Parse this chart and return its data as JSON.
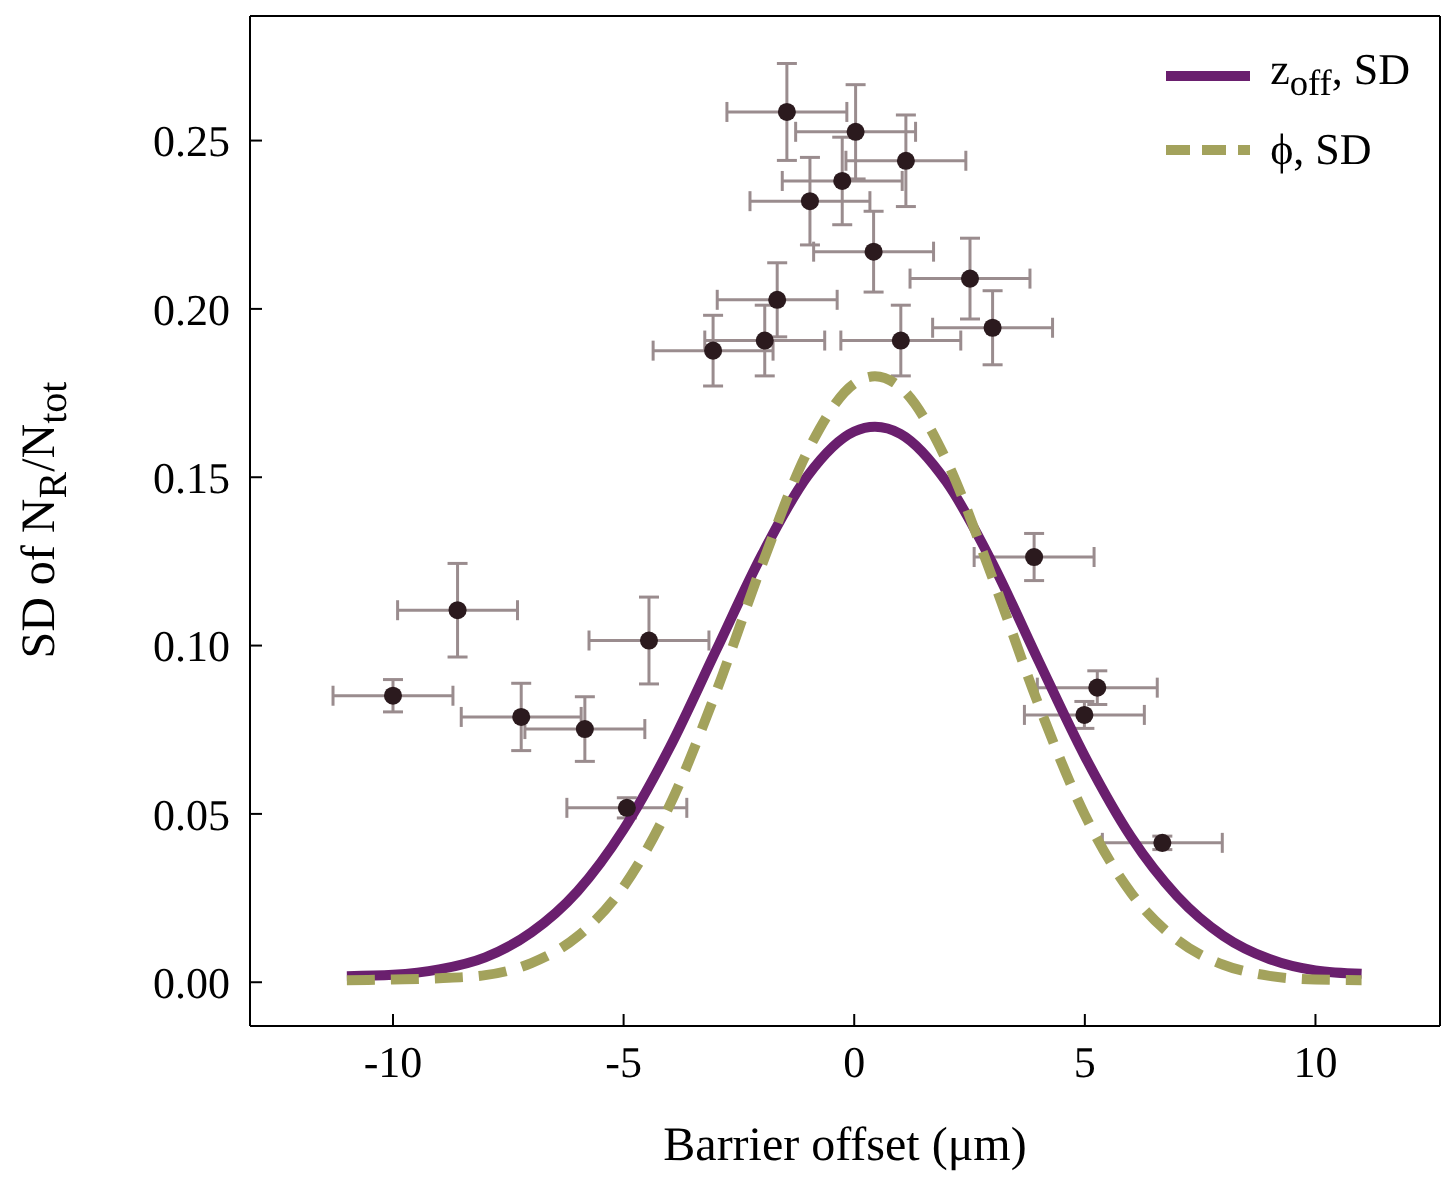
{
  "chart_data": {
    "type": "scatter",
    "xlabel": "Barrier offset (μm)",
    "ylabel": "SD of N$_{R}$/N$_{tot}$",
    "xlim": [
      -13.1,
      12.7
    ],
    "ylim": [
      -0.013,
      0.287
    ],
    "xticks": [
      -10,
      -5,
      0,
      5,
      10
    ],
    "yticks": [
      {
        "value": 0,
        "label": "0.00"
      },
      {
        "value": 0.05,
        "label": "0.05"
      },
      {
        "value": 0.1,
        "label": "0.10"
      },
      {
        "value": 0.15,
        "label": "0.15"
      },
      {
        "value": 0.2,
        "label": "0.20"
      },
      {
        "value": 0.25,
        "label": "0.25"
      }
    ],
    "legend": "top right",
    "series": [
      {
        "color": "#2b1a1e",
        "marker": "circle",
        "x": [
          -1.46,
          0.03,
          1.12,
          -0.26,
          -0.96,
          0.42,
          2.51,
          -1.67,
          -1.94,
          -3.06,
          1.01,
          3.0,
          3.9,
          -8.6,
          -4.45,
          -10.0,
          -7.22,
          -5.84,
          -4.93,
          5.27,
          4.99,
          6.68
        ],
        "values": [
          0.2585,
          0.2526,
          0.244,
          0.238,
          0.232,
          0.217,
          0.209,
          0.2027,
          0.1906,
          0.1876,
          0.1906,
          0.1944,
          0.1263,
          0.1105,
          0.1015,
          0.0851,
          0.0788,
          0.0752,
          0.0518,
          0.0875,
          0.0794,
          0.0414
        ],
        "errors": [
          0.0144,
          0.014,
          0.0136,
          0.013,
          0.013,
          0.012,
          0.012,
          0.011,
          0.0105,
          0.0105,
          0.0105,
          0.011,
          0.007,
          0.0139,
          0.0129,
          0.0048,
          0.01,
          0.0096,
          0.003,
          0.005,
          0.004,
          0.002
        ],
        "xerrors": [
          1.3,
          1.3,
          1.3,
          1.3,
          1.3,
          1.3,
          1.3,
          1.3,
          1.3,
          1.3,
          1.3,
          1.3,
          1.3,
          1.3,
          1.3,
          1.3,
          1.3,
          1.3,
          1.3,
          1.3,
          1.3,
          1.3
        ]
      },
      {
        "type": "line",
        "name": "z$_{off}$, SD",
        "color": "#6a1f6e",
        "line_style": "solid",
        "marker": "none",
        "x": [
          -11,
          -10,
          -9,
          -8,
          -7,
          -6,
          -5,
          -4,
          -3,
          -2,
          -1,
          0,
          0.45,
          1,
          2,
          3,
          4,
          5,
          6,
          7,
          8,
          9,
          10,
          11
        ],
        "values": [
          0.0018,
          0.0022,
          0.0038,
          0.0074,
          0.0148,
          0.027,
          0.0454,
          0.0697,
          0.0984,
          0.127,
          0.1506,
          0.1636,
          0.165,
          0.1629,
          0.1486,
          0.1244,
          0.0954,
          0.0671,
          0.0432,
          0.0256,
          0.0138,
          0.0069,
          0.0035,
          0.0025
        ]
      },
      {
        "type": "line",
        "name": "ϕ, SD",
        "color": "#a3a25c",
        "line_style": "dashed",
        "marker": "none",
        "x": [
          -11,
          -10,
          -9,
          -8,
          -7,
          -6,
          -5,
          -4,
          -3,
          -2,
          -1,
          0,
          0.45,
          1,
          2,
          3,
          4,
          5,
          6,
          7,
          8,
          9,
          10,
          11
        ],
        "values": [
          0.0006,
          0.0008,
          0.0012,
          0.0021,
          0.0057,
          0.0136,
          0.0284,
          0.0526,
          0.086,
          0.124,
          0.158,
          0.1778,
          0.18,
          0.1767,
          0.155,
          0.12,
          0.0823,
          0.0497,
          0.0266,
          0.0126,
          0.0052,
          0.0019,
          0.0008,
          0.0006
        ]
      }
    ]
  }
}
